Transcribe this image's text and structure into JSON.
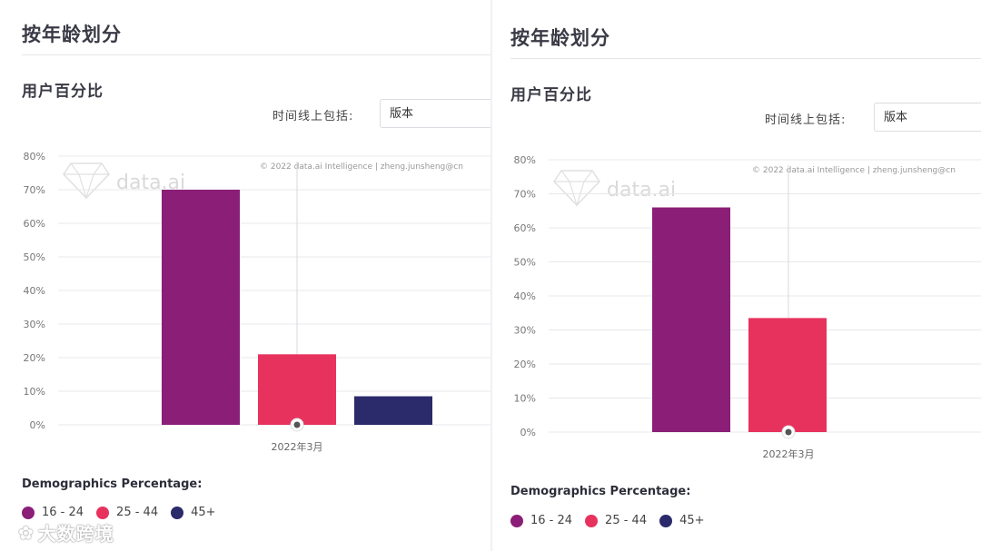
{
  "panels": [
    {
      "section_title": "按年龄划分",
      "subtitle": "用户百分比",
      "filter_label": "时间线上包括:",
      "filter_value": "版本",
      "watermark_text": "data.ai",
      "copyright": "© 2022 data.ai Intelligence | zheng.junsheng@cn",
      "legend_title": "Demographics Percentage:",
      "legend": [
        {
          "label": "16 - 24",
          "color": "#8b1e77"
        },
        {
          "label": "25 - 44",
          "color": "#e8325e"
        },
        {
          "label": "45+",
          "color": "#2b2a6b"
        }
      ]
    },
    {
      "section_title": "按年龄划分",
      "subtitle": "用户百分比",
      "filter_label": "时间线上包括:",
      "filter_value": "版本",
      "watermark_text": "data.ai",
      "copyright": "© 2022 data.ai Intelligence | zheng.junsheng@cn",
      "legend_title": "Demographics Percentage:",
      "legend": [
        {
          "label": "16 - 24",
          "color": "#8b1e77"
        },
        {
          "label": "25 - 44",
          "color": "#e8325e"
        },
        {
          "label": "45+",
          "color": "#2b2a6b"
        }
      ]
    }
  ],
  "chart_data": [
    {
      "type": "bar",
      "categories": [
        "2022年3月"
      ],
      "series": [
        {
          "name": "16 - 24",
          "values": [
            70
          ],
          "color": "#8b1e77"
        },
        {
          "name": "25 - 44",
          "values": [
            21
          ],
          "color": "#e8325e"
        },
        {
          "name": "45+",
          "values": [
            8.5
          ],
          "color": "#2b2a6b"
        }
      ],
      "y_ticks": [
        "80%",
        "70%",
        "60%",
        "50%",
        "40%",
        "30%",
        "20%",
        "10%",
        "0%"
      ],
      "ylim": [
        0,
        80
      ],
      "grid": true,
      "legend_position": "bottom-left"
    },
    {
      "type": "bar",
      "categories": [
        "2022年3月"
      ],
      "series": [
        {
          "name": "16 - 24",
          "values": [
            66
          ],
          "color": "#8b1e77"
        },
        {
          "name": "25 - 44",
          "values": [
            33.5
          ],
          "color": "#e8325e"
        }
      ],
      "y_ticks": [
        "80%",
        "70%",
        "60%",
        "50%",
        "40%",
        "30%",
        "20%",
        "10%",
        "0%"
      ],
      "ylim": [
        0,
        80
      ],
      "grid": true,
      "legend_position": "bottom-left"
    }
  ],
  "brand_watermark": "大数跨境"
}
